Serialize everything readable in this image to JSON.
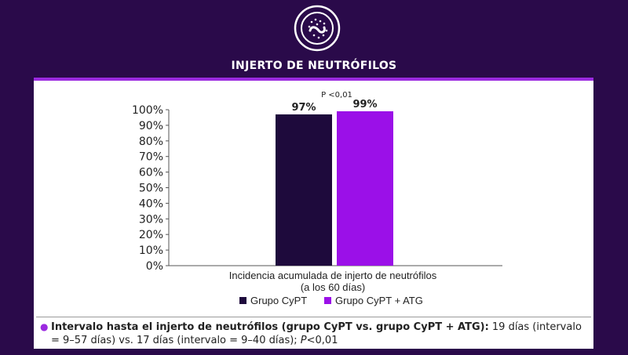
{
  "header": {
    "title": "INJERTO DE NEUTRÓFILOS",
    "logo_icon": "neutrophil-cell-icon"
  },
  "colors": {
    "background": "#2a0a4a",
    "accent": "#9b2ae0",
    "series_1": "#1e0a3c",
    "series_2": "#9b10e8"
  },
  "chart_data": {
    "type": "bar",
    "categories": [
      "Incidencia acumulada de injerto de neutrófilos (a los 60 días)"
    ],
    "xlabel_lines": [
      "Incidencia acumulada de injerto de neutrófilos",
      "(a los 60 días)"
    ],
    "series": [
      {
        "name": "Grupo CyPT",
        "values": [
          97
        ],
        "label": "97%"
      },
      {
        "name": "Grupo CyPT + ATG",
        "values": [
          99
        ],
        "label": "99%"
      }
    ],
    "yticks": [
      "0%",
      "10%",
      "20%",
      "30%",
      "40%",
      "50%",
      "60%",
      "70%",
      "80%",
      "90%",
      "100%"
    ],
    "ylim": [
      0,
      100
    ],
    "annotation": "P <0,01",
    "legend_position": "bottom"
  },
  "note": {
    "bold": "Intervalo hasta el injerto de neutrófilos (grupo CyPT vs. grupo CyPT + ATG):",
    "rest": " 19 días (intervalo = 9–57 días) vs. 17 días (intervalo = 9–40 días); ",
    "p_label": "P",
    "p_value": "<0,01"
  }
}
